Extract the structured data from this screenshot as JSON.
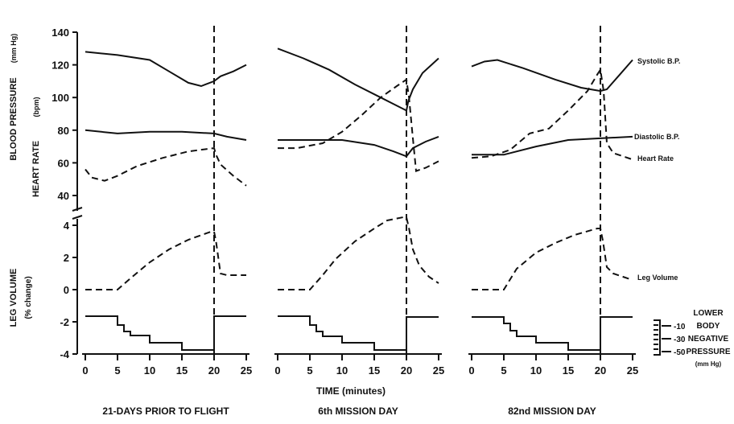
{
  "chart_data": {
    "type": "line",
    "x_label": "TIME (minutes)",
    "x_ticks": [
      0,
      5,
      10,
      15,
      20,
      25
    ],
    "xlim": [
      0,
      25
    ],
    "upper_axis": {
      "label_line1": "BLOOD PRESSURE",
      "label_unit1": "(mm Hg)",
      "label_line2": "HEART RATE",
      "label_unit2": "(bpm)",
      "ticks": [
        40,
        60,
        80,
        100,
        120,
        140
      ],
      "ylim": [
        35,
        142
      ]
    },
    "lower_axis": {
      "label_line1": "LEG VOLUME",
      "label_unit1": "(% change)",
      "ticks": [
        -4,
        -2,
        0,
        2,
        4
      ],
      "ylim": [
        -4,
        4.6
      ]
    },
    "lbnp_legend": {
      "title1": "LOWER",
      "title2": "BODY",
      "title3": "NEGATIVE",
      "title4": "PRESSURE",
      "title5": "(mm Hg)",
      "levels": [
        "-10",
        "-30",
        "-50"
      ]
    },
    "series_labels": {
      "systolic": "Systolic B.P.",
      "diastolic": "Diastolic B.P.",
      "heart_rate": "Heart Rate",
      "leg_volume": "Leg Volume"
    },
    "panels": [
      {
        "title": "21-DAYS PRIOR TO FLIGHT",
        "systolic": [
          [
            0,
            128
          ],
          [
            5,
            126
          ],
          [
            10,
            123
          ],
          [
            13,
            116
          ],
          [
            16,
            109
          ],
          [
            18,
            107
          ],
          [
            20,
            110
          ],
          [
            21,
            113
          ],
          [
            23,
            116
          ],
          [
            25,
            120
          ]
        ],
        "diastolic": [
          [
            0,
            80
          ],
          [
            5,
            78
          ],
          [
            10,
            79
          ],
          [
            15,
            79
          ],
          [
            20,
            78
          ],
          [
            22,
            76
          ],
          [
            25,
            74
          ]
        ],
        "heart_rate": [
          [
            0,
            56
          ],
          [
            1,
            51
          ],
          [
            3,
            49
          ],
          [
            5,
            52
          ],
          [
            8,
            58
          ],
          [
            12,
            63
          ],
          [
            16,
            67
          ],
          [
            20,
            69
          ],
          [
            20.3,
            65
          ],
          [
            21,
            59
          ],
          [
            23,
            52
          ],
          [
            25,
            46
          ]
        ],
        "leg_volume": [
          [
            0,
            0
          ],
          [
            5,
            0
          ],
          [
            7,
            0.7
          ],
          [
            10,
            1.7
          ],
          [
            13,
            2.5
          ],
          [
            16,
            3.1
          ],
          [
            19.5,
            3.6
          ],
          [
            20,
            3.6
          ],
          [
            20.3,
            3.0
          ],
          [
            21,
            1.0
          ],
          [
            22,
            0.9
          ],
          [
            25,
            0.9
          ]
        ],
        "lbnp": [
          [
            0,
            -1.65
          ],
          [
            5,
            -1.65
          ],
          [
            5,
            -2.2
          ],
          [
            6,
            -2.2
          ],
          [
            6,
            -2.6
          ],
          [
            7,
            -2.6
          ],
          [
            7,
            -2.85
          ],
          [
            10,
            -2.85
          ],
          [
            10,
            -3.3
          ],
          [
            15,
            -3.3
          ],
          [
            15,
            -3.75
          ],
          [
            20,
            -3.75
          ],
          [
            20,
            -1.65
          ],
          [
            25,
            -1.65
          ]
        ]
      },
      {
        "title": "6th MISSION DAY",
        "systolic": [
          [
            0,
            130
          ],
          [
            4,
            124
          ],
          [
            8,
            117
          ],
          [
            12,
            108
          ],
          [
            16,
            100
          ],
          [
            19.5,
            93
          ],
          [
            20,
            92
          ],
          [
            20.3,
            98
          ],
          [
            21,
            105
          ],
          [
            22.5,
            115
          ],
          [
            25,
            124
          ]
        ],
        "diastolic": [
          [
            0,
            74
          ],
          [
            5,
            74
          ],
          [
            10,
            74
          ],
          [
            15,
            71
          ],
          [
            18,
            67
          ],
          [
            20,
            64
          ],
          [
            21,
            69
          ],
          [
            23,
            73
          ],
          [
            25,
            76
          ]
        ],
        "heart_rate": [
          [
            0,
            69
          ],
          [
            3,
            69
          ],
          [
            7,
            72
          ],
          [
            10,
            79
          ],
          [
            13,
            89
          ],
          [
            16,
            100
          ],
          [
            18.5,
            107
          ],
          [
            20,
            111
          ],
          [
            20.4,
            100
          ],
          [
            21,
            75
          ],
          [
            21.5,
            55
          ],
          [
            23,
            57
          ],
          [
            25,
            61
          ]
        ],
        "leg_volume": [
          [
            0,
            0
          ],
          [
            5,
            0
          ],
          [
            7,
            0.9
          ],
          [
            9,
            1.9
          ],
          [
            12,
            3.0
          ],
          [
            15,
            3.8
          ],
          [
            17,
            4.3
          ],
          [
            19.5,
            4.5
          ],
          [
            20,
            4.5
          ],
          [
            20.4,
            3.8
          ],
          [
            21,
            2.5
          ],
          [
            22,
            1.5
          ],
          [
            23.5,
            0.8
          ],
          [
            25,
            0.4
          ]
        ],
        "lbnp": [
          [
            0,
            -1.65
          ],
          [
            5,
            -1.65
          ],
          [
            5,
            -2.2
          ],
          [
            6,
            -2.2
          ],
          [
            6,
            -2.6
          ],
          [
            7,
            -2.6
          ],
          [
            7,
            -2.9
          ],
          [
            10,
            -2.9
          ],
          [
            10,
            -3.3
          ],
          [
            15,
            -3.3
          ],
          [
            15,
            -3.75
          ],
          [
            20,
            -3.75
          ],
          [
            20,
            -1.7
          ],
          [
            25,
            -1.7
          ]
        ]
      },
      {
        "title": "82nd MISSION DAY",
        "systolic": [
          [
            0,
            119
          ],
          [
            2,
            122
          ],
          [
            4,
            123
          ],
          [
            8,
            118
          ],
          [
            13,
            111
          ],
          [
            17,
            106
          ],
          [
            20,
            104
          ],
          [
            21,
            105
          ],
          [
            23,
            114
          ],
          [
            25,
            123
          ]
        ],
        "diastolic": [
          [
            0,
            65
          ],
          [
            5,
            65
          ],
          [
            10,
            70
          ],
          [
            15,
            74
          ],
          [
            20,
            75
          ],
          [
            25,
            76
          ]
        ],
        "heart_rate": [
          [
            0,
            63
          ],
          [
            3,
            64
          ],
          [
            6,
            68
          ],
          [
            9,
            78
          ],
          [
            12,
            81
          ],
          [
            15,
            92
          ],
          [
            18,
            104
          ],
          [
            19.5,
            114
          ],
          [
            20,
            117
          ],
          [
            20.5,
            104
          ],
          [
            21,
            72
          ],
          [
            22,
            66
          ],
          [
            25,
            62
          ]
        ],
        "leg_volume": [
          [
            0,
            0
          ],
          [
            5,
            0
          ],
          [
            7,
            1.3
          ],
          [
            10,
            2.3
          ],
          [
            13,
            2.9
          ],
          [
            16,
            3.4
          ],
          [
            19.5,
            3.8
          ],
          [
            20,
            3.8
          ],
          [
            20.4,
            3.0
          ],
          [
            21,
            1.4
          ],
          [
            22,
            1.0
          ],
          [
            25,
            0.6
          ]
        ],
        "lbnp": [
          [
            0,
            -1.7
          ],
          [
            5,
            -1.7
          ],
          [
            5,
            -2.1
          ],
          [
            6,
            -2.1
          ],
          [
            6,
            -2.55
          ],
          [
            7,
            -2.55
          ],
          [
            7,
            -2.9
          ],
          [
            10,
            -2.9
          ],
          [
            10,
            -3.3
          ],
          [
            15,
            -3.3
          ],
          [
            15,
            -3.75
          ],
          [
            20,
            -3.75
          ],
          [
            20,
            -1.7
          ],
          [
            25,
            -1.7
          ]
        ]
      }
    ]
  }
}
